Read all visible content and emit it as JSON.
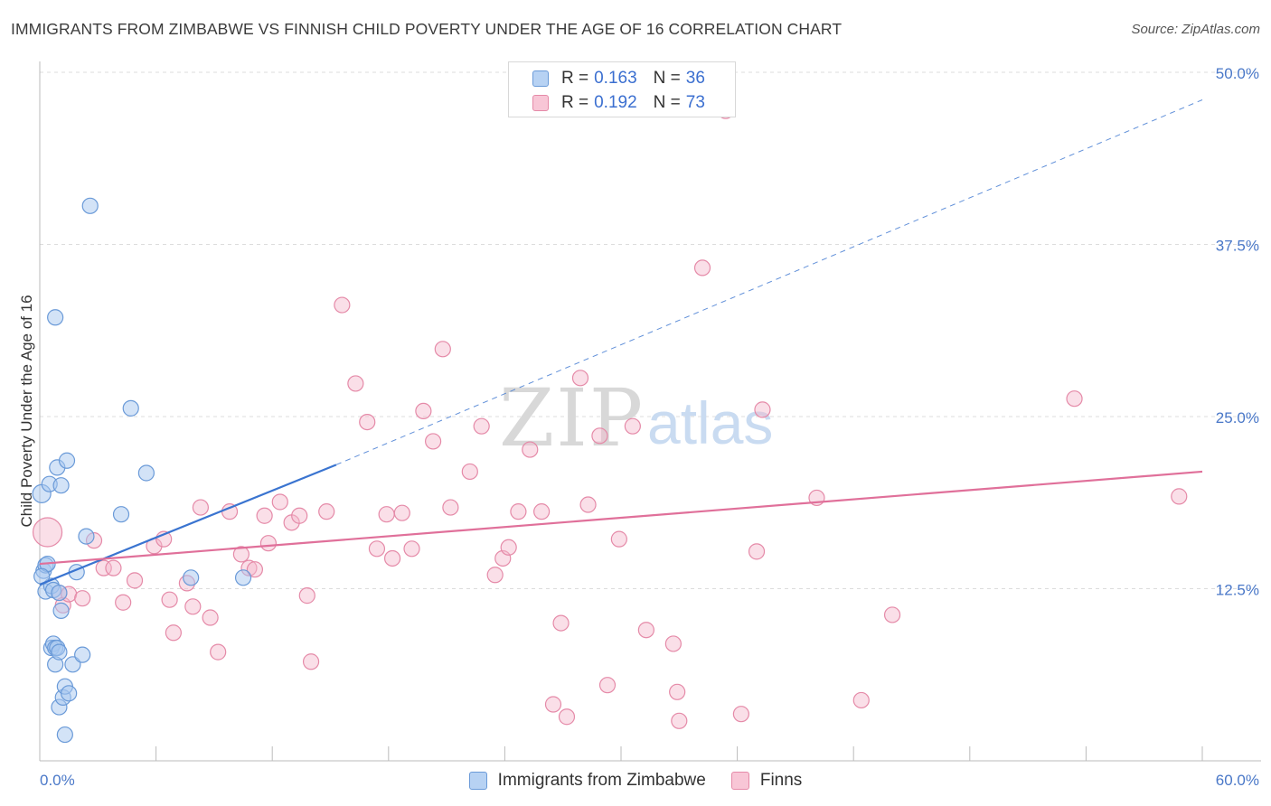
{
  "title": "IMMIGRANTS FROM ZIMBABWE VS FINNISH CHILD POVERTY UNDER THE AGE OF 16 CORRELATION CHART",
  "source": "Source: ZipAtlas.com",
  "watermark": {
    "zip": "ZIP",
    "atlas": "atlas"
  },
  "legend": {
    "rows": [
      {
        "r_label": "R =",
        "r_value": "0.163",
        "n_label": "N =",
        "n_value": "36"
      },
      {
        "r_label": "R =",
        "r_value": "0.192",
        "n_label": "N =",
        "n_value": "73"
      }
    ]
  },
  "bottom_legend": {
    "items": [
      "Immigrants from Zimbabwe",
      "Finns"
    ]
  },
  "colors": {
    "blue_fill": "#a8c8f0",
    "blue_stroke": "#6a9ad8",
    "blue_line": "#3a74d0",
    "pink_fill": "#f5b8cb",
    "pink_stroke": "#e58aa8",
    "pink_line": "#e0709a",
    "tick_text": "#4a78c8",
    "grid": "#dcdcdc"
  },
  "chart_data": {
    "type": "scatter",
    "title": "IMMIGRANTS FROM ZIMBABWE VS FINNISH CHILD POVERTY UNDER THE AGE OF 16 CORRELATION CHART",
    "xlabel": "",
    "ylabel": "Child Poverty Under the Age of 16",
    "xlim": [
      0,
      60
    ],
    "ylim": [
      0,
      50
    ],
    "x_tick_labels": [
      "0.0%",
      "60.0%"
    ],
    "y_ticks": [
      12.5,
      25.0,
      37.5,
      50.0
    ],
    "y_tick_labels": [
      "12.5%",
      "25.0%",
      "37.5%",
      "50.0%"
    ],
    "series": [
      {
        "name": "Immigrants from Zimbabwe",
        "color": "blue",
        "R": 0.163,
        "N": 36,
        "trend": {
          "x0": 0,
          "y0": 12.8,
          "x_solid_end": 15.3,
          "y_solid_end": 21.5,
          "x1": 60,
          "y1": 48.0
        },
        "points": [
          [
            0.1,
            19.4
          ],
          [
            0.2,
            13.8
          ],
          [
            0.3,
            14.2
          ],
          [
            0.3,
            12.3
          ],
          [
            0.4,
            14.3
          ],
          [
            0.5,
            20.1
          ],
          [
            0.6,
            12.7
          ],
          [
            0.6,
            8.2
          ],
          [
            0.7,
            12.4
          ],
          [
            0.7,
            8.5
          ],
          [
            0.8,
            8.2
          ],
          [
            0.8,
            7.0
          ],
          [
            0.8,
            32.2
          ],
          [
            0.9,
            21.3
          ],
          [
            0.9,
            8.2
          ],
          [
            1.0,
            3.9
          ],
          [
            1.0,
            12.2
          ],
          [
            1.0,
            7.9
          ],
          [
            1.1,
            10.9
          ],
          [
            1.1,
            20.0
          ],
          [
            1.2,
            4.6
          ],
          [
            1.3,
            1.9
          ],
          [
            1.3,
            5.4
          ],
          [
            1.4,
            21.8
          ],
          [
            1.5,
            4.9
          ],
          [
            1.7,
            7.0
          ],
          [
            1.9,
            13.7
          ],
          [
            2.2,
            7.7
          ],
          [
            2.4,
            16.3
          ],
          [
            2.6,
            40.3
          ],
          [
            4.2,
            17.9
          ],
          [
            4.7,
            25.6
          ],
          [
            5.5,
            20.9
          ],
          [
            7.8,
            13.3
          ],
          [
            10.5,
            13.3
          ],
          [
            0.1,
            13.4
          ]
        ]
      },
      {
        "name": "Finns",
        "color": "pink",
        "R": 0.192,
        "N": 73,
        "trend": {
          "x0": 0,
          "y0": 14.3,
          "x1": 60,
          "y1": 21.0
        },
        "points": [
          [
            0.4,
            16.6
          ],
          [
            1.0,
            12.2
          ],
          [
            1.2,
            11.3
          ],
          [
            1.5,
            12.1
          ],
          [
            2.2,
            11.8
          ],
          [
            2.8,
            16.0
          ],
          [
            3.3,
            14.0
          ],
          [
            3.8,
            14.0
          ],
          [
            4.3,
            11.5
          ],
          [
            4.9,
            13.1
          ],
          [
            5.9,
            15.6
          ],
          [
            6.4,
            16.1
          ],
          [
            6.7,
            11.7
          ],
          [
            6.9,
            9.3
          ],
          [
            7.6,
            12.9
          ],
          [
            7.9,
            11.2
          ],
          [
            8.3,
            18.4
          ],
          [
            8.8,
            10.4
          ],
          [
            9.2,
            7.9
          ],
          [
            9.8,
            18.1
          ],
          [
            10.4,
            15.0
          ],
          [
            10.8,
            14.0
          ],
          [
            11.1,
            13.9
          ],
          [
            11.6,
            17.8
          ],
          [
            11.8,
            15.8
          ],
          [
            12.4,
            18.8
          ],
          [
            13.0,
            17.3
          ],
          [
            13.4,
            17.8
          ],
          [
            13.8,
            12.0
          ],
          [
            14.0,
            7.2
          ],
          [
            14.8,
            18.1
          ],
          [
            15.6,
            33.1
          ],
          [
            16.3,
            27.4
          ],
          [
            16.9,
            24.6
          ],
          [
            17.4,
            15.4
          ],
          [
            17.9,
            17.9
          ],
          [
            18.2,
            14.7
          ],
          [
            18.7,
            18.0
          ],
          [
            19.2,
            15.4
          ],
          [
            19.8,
            25.4
          ],
          [
            20.3,
            23.2
          ],
          [
            20.8,
            29.9
          ],
          [
            21.2,
            18.4
          ],
          [
            22.2,
            21.0
          ],
          [
            22.8,
            24.3
          ],
          [
            23.5,
            13.5
          ],
          [
            23.9,
            14.7
          ],
          [
            24.2,
            15.5
          ],
          [
            24.7,
            18.1
          ],
          [
            25.3,
            22.6
          ],
          [
            25.9,
            18.1
          ],
          [
            26.5,
            4.1
          ],
          [
            26.9,
            10.0
          ],
          [
            27.2,
            3.2
          ],
          [
            27.9,
            27.8
          ],
          [
            28.3,
            18.6
          ],
          [
            28.9,
            23.6
          ],
          [
            29.3,
            5.5
          ],
          [
            29.9,
            16.1
          ],
          [
            30.6,
            24.3
          ],
          [
            31.3,
            9.5
          ],
          [
            32.7,
            8.5
          ],
          [
            32.9,
            5.0
          ],
          [
            33.0,
            2.9
          ],
          [
            34.2,
            35.8
          ],
          [
            36.2,
            3.4
          ],
          [
            37.0,
            15.2
          ],
          [
            37.3,
            25.5
          ],
          [
            40.1,
            19.1
          ],
          [
            42.4,
            4.4
          ],
          [
            44.0,
            10.6
          ],
          [
            53.4,
            26.3
          ],
          [
            58.8,
            19.2
          ]
        ]
      }
    ],
    "outlier_partial_point": {
      "series": "Finns",
      "x": 35.4,
      "y": 47.2
    }
  }
}
